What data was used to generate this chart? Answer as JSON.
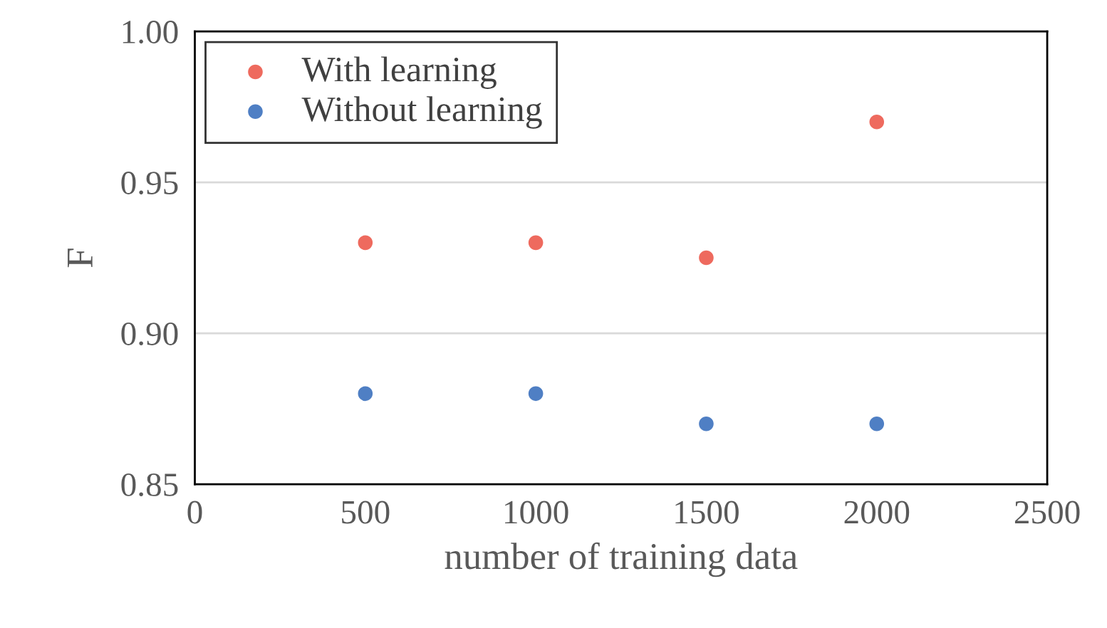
{
  "chart_data": {
    "type": "scatter",
    "xlabel": "number of training data",
    "ylabel": "F",
    "x": [
      500,
      1000,
      1500,
      2000
    ],
    "series": [
      {
        "name": "With learning",
        "color": "#ee6a5e",
        "values": [
          0.93,
          0.93,
          0.925,
          0.97
        ]
      },
      {
        "name": "Without learning",
        "color": "#4f7fc4",
        "values": [
          0.88,
          0.88,
          0.87,
          0.87
        ]
      }
    ],
    "xlim": [
      0,
      2500
    ],
    "xticks": [
      0,
      500,
      1000,
      1500,
      2000,
      2500
    ],
    "ylim": [
      0.85,
      1.0
    ],
    "yticks": [
      {
        "value": 0.85,
        "label": "0.85"
      },
      {
        "value": 0.9,
        "label": "0.90"
      },
      {
        "value": 0.95,
        "label": "0.95"
      },
      {
        "value": 1.0,
        "label": "1.00"
      }
    ],
    "grid": "y",
    "legend": "top left",
    "marker": "circle"
  }
}
